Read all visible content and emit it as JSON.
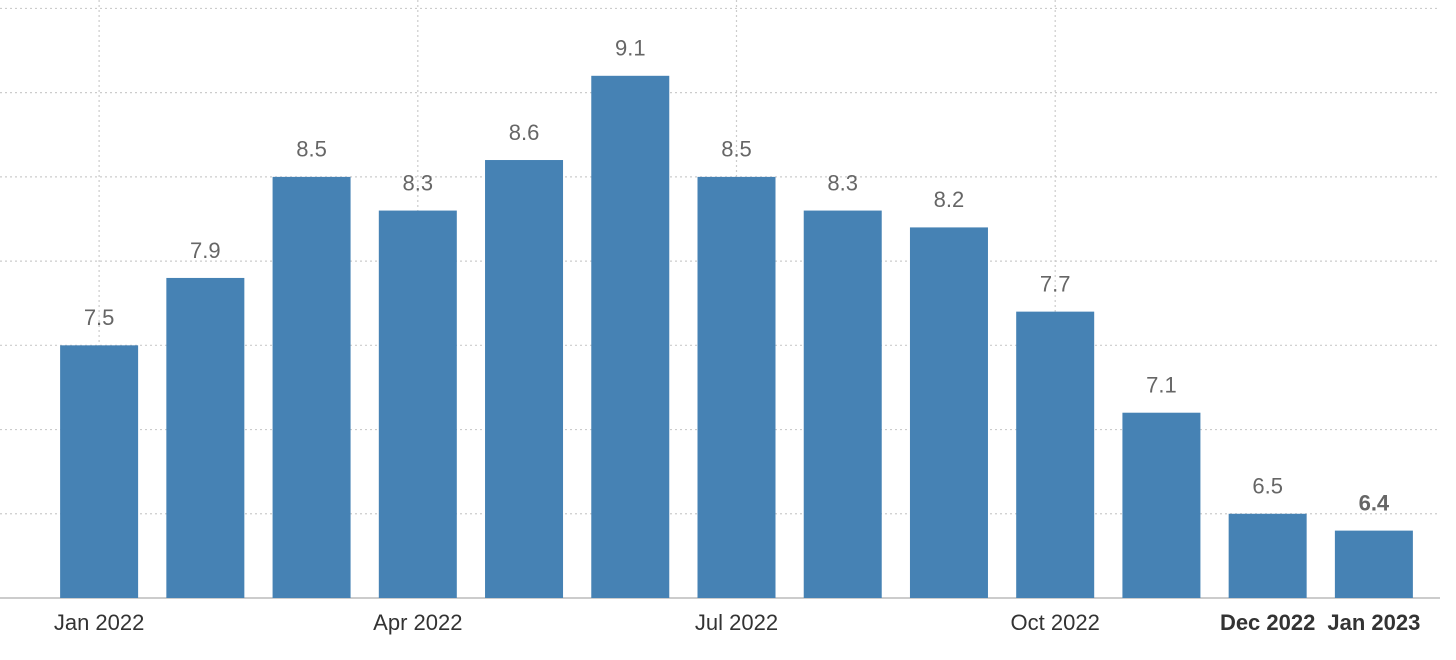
{
  "chart_data": {
    "type": "bar",
    "categories": [
      "Jan 2022",
      null,
      null,
      "Apr 2022",
      null,
      null,
      "Jul 2022",
      null,
      null,
      "Oct 2022",
      null,
      "Dec 2022",
      "Jan 2023"
    ],
    "values": [
      7.5,
      7.9,
      8.5,
      8.3,
      8.6,
      9.1,
      8.5,
      8.3,
      8.2,
      7.7,
      7.1,
      6.5,
      6.4
    ],
    "color": "#4682b4",
    "ylim": [
      6,
      9.55
    ],
    "yticks": [
      6,
      6.5,
      7,
      7.5,
      8,
      8.5,
      9,
      9.5
    ],
    "grid": true
  }
}
